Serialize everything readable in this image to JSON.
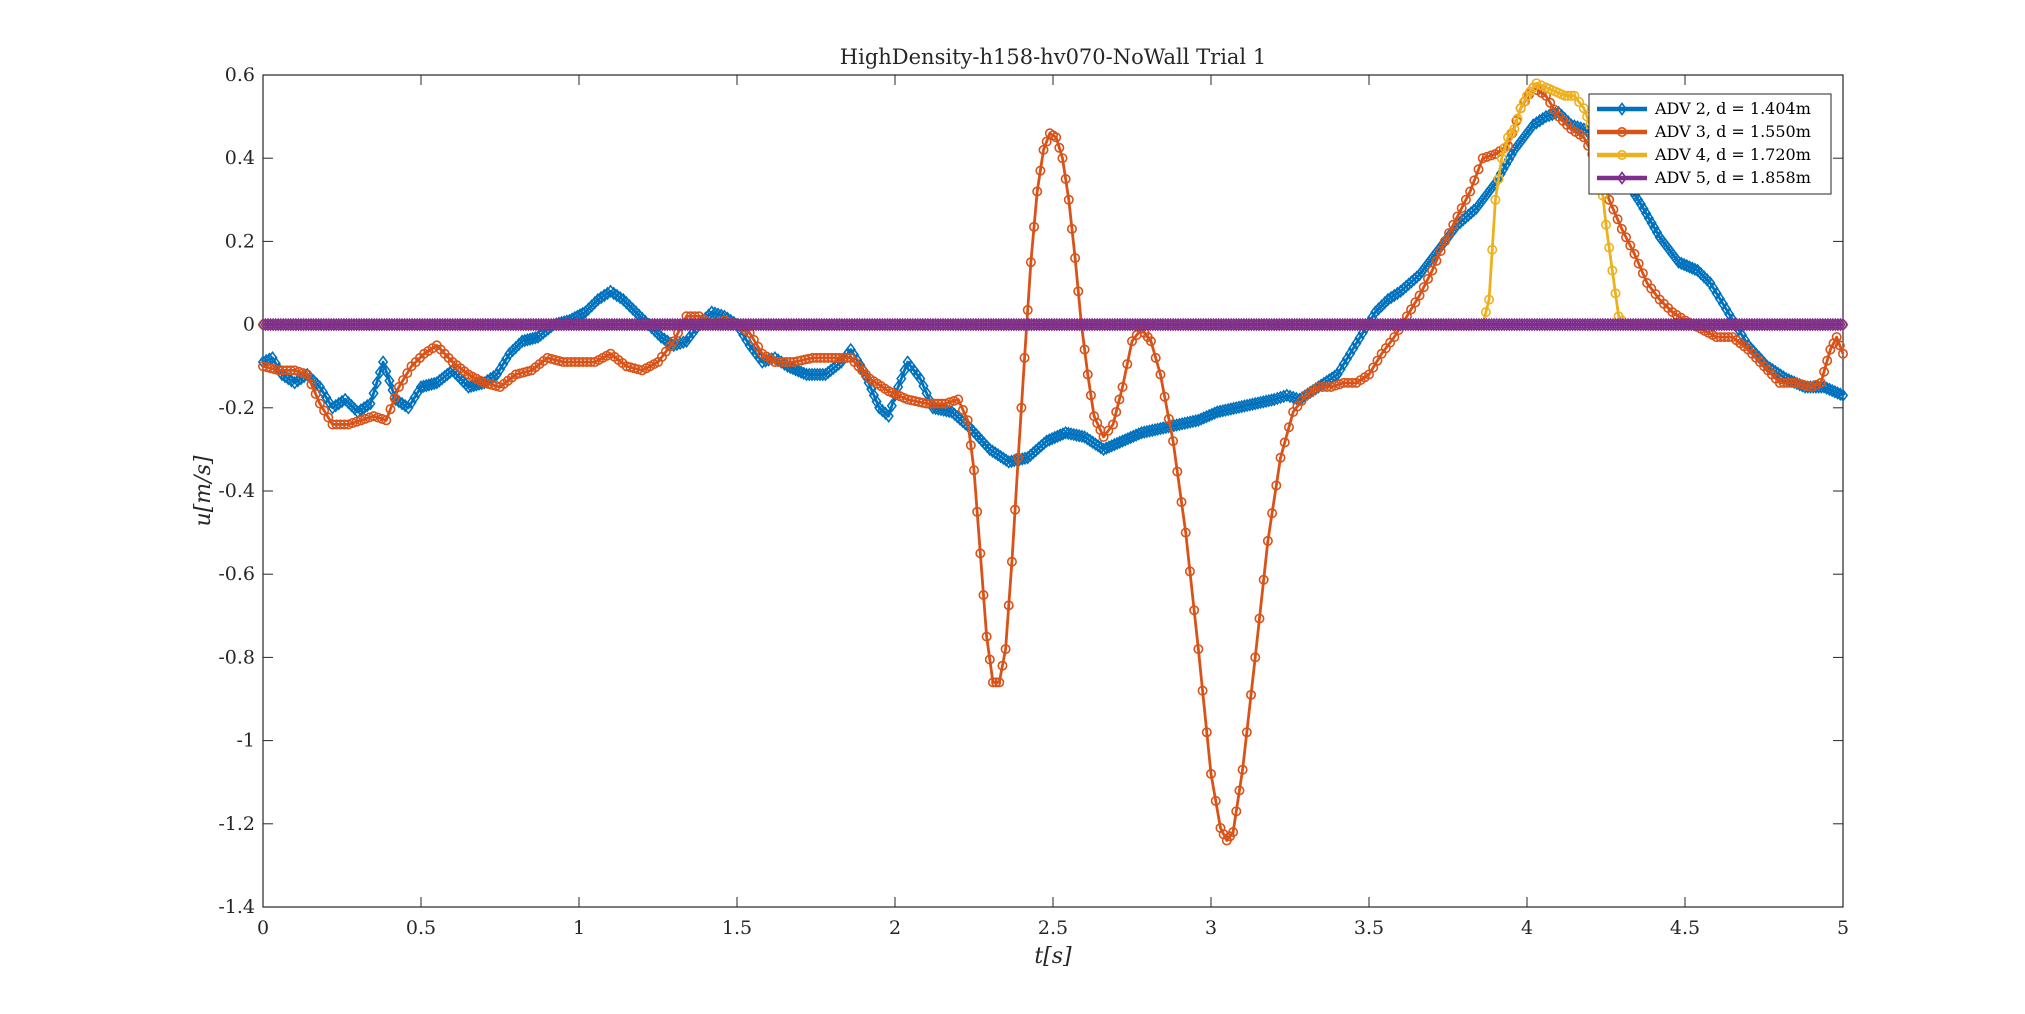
{
  "chart_data": {
    "type": "line",
    "title": "HighDensity-h158-hv070-NoWall Trial 1",
    "xlabel": "t[s]",
    "ylabel": "u[m/s]",
    "xlim": [
      0,
      5
    ],
    "ylim": [
      -1.4,
      0.6
    ],
    "xticks": [
      0,
      0.5,
      1,
      1.5,
      2,
      2.5,
      3,
      3.5,
      4,
      4.5,
      5
    ],
    "xtick_labels": [
      "0",
      "0.5",
      "1",
      "1.5",
      "2",
      "2.5",
      "3",
      "3.5",
      "4",
      "4.5",
      "5"
    ],
    "yticks": [
      -1.4,
      -1.2,
      -1,
      -0.8,
      -0.6,
      -0.4,
      -0.2,
      0,
      0.2,
      0.4,
      0.6
    ],
    "ytick_labels": [
      "-1.4",
      "-1.2",
      "-1",
      "-0.8",
      "-0.6",
      "-0.4",
      "-0.2",
      "0",
      "0.2",
      "0.4",
      "0.6"
    ],
    "grid": false,
    "legend_position": "top-right",
    "series": [
      {
        "name": "ADV 2, d = 1.404m",
        "color": "#0072BD",
        "marker": "diamond",
        "points": [
          [
            0,
            -0.09
          ],
          [
            0.03,
            -0.08
          ],
          [
            0.06,
            -0.12
          ],
          [
            0.1,
            -0.14
          ],
          [
            0.14,
            -0.12
          ],
          [
            0.18,
            -0.15
          ],
          [
            0.22,
            -0.2
          ],
          [
            0.26,
            -0.18
          ],
          [
            0.3,
            -0.21
          ],
          [
            0.34,
            -0.19
          ],
          [
            0.38,
            -0.09
          ],
          [
            0.42,
            -0.18
          ],
          [
            0.46,
            -0.2
          ],
          [
            0.5,
            -0.15
          ],
          [
            0.55,
            -0.14
          ],
          [
            0.6,
            -0.11
          ],
          [
            0.65,
            -0.15
          ],
          [
            0.7,
            -0.14
          ],
          [
            0.74,
            -0.12
          ],
          [
            0.78,
            -0.07
          ],
          [
            0.82,
            -0.04
          ],
          [
            0.87,
            -0.03
          ],
          [
            0.92,
            0.0
          ],
          [
            0.97,
            0.01
          ],
          [
            1.02,
            0.03
          ],
          [
            1.06,
            0.06
          ],
          [
            1.1,
            0.08
          ],
          [
            1.14,
            0.06
          ],
          [
            1.18,
            0.03
          ],
          [
            1.22,
            0.0
          ],
          [
            1.26,
            -0.03
          ],
          [
            1.3,
            -0.05
          ],
          [
            1.34,
            -0.04
          ],
          [
            1.38,
            0.0
          ],
          [
            1.42,
            0.03
          ],
          [
            1.46,
            0.02
          ],
          [
            1.5,
            0.0
          ],
          [
            1.54,
            -0.05
          ],
          [
            1.58,
            -0.09
          ],
          [
            1.62,
            -0.08
          ],
          [
            1.66,
            -0.1
          ],
          [
            1.72,
            -0.12
          ],
          [
            1.78,
            -0.12
          ],
          [
            1.83,
            -0.09
          ],
          [
            1.86,
            -0.06
          ],
          [
            1.9,
            -0.11
          ],
          [
            1.95,
            -0.2
          ],
          [
            1.98,
            -0.22
          ],
          [
            2.0,
            -0.17
          ],
          [
            2.04,
            -0.09
          ],
          [
            2.08,
            -0.13
          ],
          [
            2.12,
            -0.2
          ],
          [
            2.18,
            -0.21
          ],
          [
            2.24,
            -0.25
          ],
          [
            2.3,
            -0.3
          ],
          [
            2.36,
            -0.33
          ],
          [
            2.42,
            -0.32
          ],
          [
            2.48,
            -0.28
          ],
          [
            2.54,
            -0.26
          ],
          [
            2.6,
            -0.27
          ],
          [
            2.66,
            -0.3
          ],
          [
            2.72,
            -0.28
          ],
          [
            2.78,
            -0.26
          ],
          [
            2.84,
            -0.25
          ],
          [
            2.9,
            -0.24
          ],
          [
            2.96,
            -0.23
          ],
          [
            3.02,
            -0.21
          ],
          [
            3.08,
            -0.2
          ],
          [
            3.14,
            -0.19
          ],
          [
            3.2,
            -0.18
          ],
          [
            3.24,
            -0.17
          ],
          [
            3.28,
            -0.18
          ],
          [
            3.34,
            -0.15
          ],
          [
            3.4,
            -0.12
          ],
          [
            3.44,
            -0.07
          ],
          [
            3.48,
            -0.02
          ],
          [
            3.52,
            0.03
          ],
          [
            3.56,
            0.06
          ],
          [
            3.6,
            0.08
          ],
          [
            3.66,
            0.12
          ],
          [
            3.72,
            0.18
          ],
          [
            3.78,
            0.24
          ],
          [
            3.84,
            0.28
          ],
          [
            3.9,
            0.34
          ],
          [
            3.96,
            0.42
          ],
          [
            4.02,
            0.48
          ],
          [
            4.06,
            0.5
          ],
          [
            4.1,
            0.51
          ],
          [
            4.14,
            0.48
          ],
          [
            4.18,
            0.47
          ],
          [
            4.22,
            0.45
          ],
          [
            4.26,
            0.41
          ],
          [
            4.3,
            0.36
          ],
          [
            4.36,
            0.29
          ],
          [
            4.42,
            0.21
          ],
          [
            4.48,
            0.15
          ],
          [
            4.54,
            0.13
          ],
          [
            4.58,
            0.1
          ],
          [
            4.62,
            0.05
          ],
          [
            4.66,
            0.0
          ],
          [
            4.7,
            -0.05
          ],
          [
            4.76,
            -0.1
          ],
          [
            4.82,
            -0.13
          ],
          [
            4.88,
            -0.15
          ],
          [
            4.94,
            -0.15
          ],
          [
            5.0,
            -0.17
          ]
        ]
      },
      {
        "name": "ADV 3, d = 1.550m",
        "color": "#D95319",
        "marker": "circle",
        "points": [
          [
            0,
            -0.1
          ],
          [
            0.05,
            -0.11
          ],
          [
            0.1,
            -0.11
          ],
          [
            0.14,
            -0.12
          ],
          [
            0.18,
            -0.19
          ],
          [
            0.22,
            -0.24
          ],
          [
            0.27,
            -0.24
          ],
          [
            0.31,
            -0.23
          ],
          [
            0.35,
            -0.22
          ],
          [
            0.39,
            -0.23
          ],
          [
            0.43,
            -0.15
          ],
          [
            0.47,
            -0.1
          ],
          [
            0.51,
            -0.07
          ],
          [
            0.55,
            -0.05
          ],
          [
            0.6,
            -0.09
          ],
          [
            0.65,
            -0.12
          ],
          [
            0.7,
            -0.14
          ],
          [
            0.75,
            -0.15
          ],
          [
            0.8,
            -0.12
          ],
          [
            0.85,
            -0.11
          ],
          [
            0.9,
            -0.08
          ],
          [
            0.95,
            -0.09
          ],
          [
            1.0,
            -0.09
          ],
          [
            1.05,
            -0.09
          ],
          [
            1.1,
            -0.07
          ],
          [
            1.15,
            -0.1
          ],
          [
            1.2,
            -0.11
          ],
          [
            1.25,
            -0.09
          ],
          [
            1.3,
            -0.04
          ],
          [
            1.34,
            0.02
          ],
          [
            1.38,
            0.02
          ],
          [
            1.42,
            0.0
          ],
          [
            1.46,
            0.01
          ],
          [
            1.5,
            0.0
          ],
          [
            1.54,
            -0.02
          ],
          [
            1.58,
            -0.07
          ],
          [
            1.62,
            -0.09
          ],
          [
            1.68,
            -0.09
          ],
          [
            1.74,
            -0.08
          ],
          [
            1.8,
            -0.08
          ],
          [
            1.86,
            -0.08
          ],
          [
            1.92,
            -0.13
          ],
          [
            1.98,
            -0.16
          ],
          [
            2.04,
            -0.18
          ],
          [
            2.1,
            -0.19
          ],
          [
            2.16,
            -0.19
          ],
          [
            2.2,
            -0.18
          ],
          [
            2.23,
            -0.23
          ],
          [
            2.25,
            -0.35
          ],
          [
            2.27,
            -0.55
          ],
          [
            2.29,
            -0.75
          ],
          [
            2.31,
            -0.86
          ],
          [
            2.33,
            -0.86
          ],
          [
            2.35,
            -0.78
          ],
          [
            2.37,
            -0.57
          ],
          [
            2.39,
            -0.32
          ],
          [
            2.41,
            -0.08
          ],
          [
            2.43,
            0.15
          ],
          [
            2.45,
            0.32
          ],
          [
            2.47,
            0.42
          ],
          [
            2.49,
            0.46
          ],
          [
            2.51,
            0.45
          ],
          [
            2.53,
            0.4
          ],
          [
            2.55,
            0.3
          ],
          [
            2.57,
            0.16
          ],
          [
            2.59,
            0.0
          ],
          [
            2.61,
            -0.12
          ],
          [
            2.63,
            -0.22
          ],
          [
            2.66,
            -0.27
          ],
          [
            2.69,
            -0.24
          ],
          [
            2.72,
            -0.15
          ],
          [
            2.75,
            -0.04
          ],
          [
            2.78,
            -0.01
          ],
          [
            2.81,
            -0.04
          ],
          [
            2.84,
            -0.12
          ],
          [
            2.88,
            -0.28
          ],
          [
            2.92,
            -0.5
          ],
          [
            2.96,
            -0.78
          ],
          [
            3.0,
            -1.08
          ],
          [
            3.03,
            -1.21
          ],
          [
            3.05,
            -1.24
          ],
          [
            3.07,
            -1.22
          ],
          [
            3.1,
            -1.07
          ],
          [
            3.14,
            -0.8
          ],
          [
            3.18,
            -0.52
          ],
          [
            3.22,
            -0.32
          ],
          [
            3.26,
            -0.21
          ],
          [
            3.3,
            -0.17
          ],
          [
            3.34,
            -0.15
          ],
          [
            3.38,
            -0.15
          ],
          [
            3.42,
            -0.14
          ],
          [
            3.46,
            -0.14
          ],
          [
            3.5,
            -0.12
          ],
          [
            3.54,
            -0.07
          ],
          [
            3.58,
            -0.03
          ],
          [
            3.62,
            0.02
          ],
          [
            3.66,
            0.07
          ],
          [
            3.7,
            0.13
          ],
          [
            3.74,
            0.2
          ],
          [
            3.78,
            0.26
          ],
          [
            3.82,
            0.32
          ],
          [
            3.86,
            0.4
          ],
          [
            3.9,
            0.41
          ],
          [
            3.94,
            0.43
          ],
          [
            3.98,
            0.52
          ],
          [
            4.02,
            0.57
          ],
          [
            4.06,
            0.55
          ],
          [
            4.1,
            0.5
          ],
          [
            4.14,
            0.47
          ],
          [
            4.18,
            0.45
          ],
          [
            4.22,
            0.39
          ],
          [
            4.26,
            0.3
          ],
          [
            4.3,
            0.23
          ],
          [
            4.34,
            0.17
          ],
          [
            4.38,
            0.1
          ],
          [
            4.42,
            0.06
          ],
          [
            4.46,
            0.03
          ],
          [
            4.5,
            0.01
          ],
          [
            4.55,
            -0.01
          ],
          [
            4.6,
            -0.03
          ],
          [
            4.65,
            -0.03
          ],
          [
            4.7,
            -0.06
          ],
          [
            4.75,
            -0.1
          ],
          [
            4.8,
            -0.14
          ],
          [
            4.85,
            -0.14
          ],
          [
            4.9,
            -0.15
          ],
          [
            4.93,
            -0.14
          ],
          [
            4.96,
            -0.06
          ],
          [
            4.98,
            -0.03
          ],
          [
            5.0,
            -0.07
          ]
        ]
      },
      {
        "name": "ADV 4, d = 1.720m",
        "color": "#EDB120",
        "marker": "circle",
        "points": [
          [
            0,
            0.0
          ],
          [
            0.25,
            0.0
          ],
          [
            0.5,
            0.0
          ],
          [
            0.75,
            0.0
          ],
          [
            1.0,
            0.0
          ],
          [
            1.25,
            0.0
          ],
          [
            1.5,
            0.0
          ],
          [
            1.75,
            0.0
          ],
          [
            2.0,
            0.0
          ],
          [
            2.25,
            0.0
          ],
          [
            2.5,
            0.0
          ],
          [
            2.75,
            0.0
          ],
          [
            3.0,
            0.0
          ],
          [
            3.25,
            0.0
          ],
          [
            3.5,
            0.0
          ],
          [
            3.75,
            0.0
          ],
          [
            3.86,
            0.0
          ],
          [
            3.88,
            0.06
          ],
          [
            3.9,
            0.3
          ],
          [
            3.92,
            0.4
          ],
          [
            3.94,
            0.45
          ],
          [
            3.96,
            0.47
          ],
          [
            3.98,
            0.52
          ],
          [
            4.0,
            0.55
          ],
          [
            4.03,
            0.58
          ],
          [
            4.06,
            0.57
          ],
          [
            4.09,
            0.56
          ],
          [
            4.12,
            0.55
          ],
          [
            4.15,
            0.55
          ],
          [
            4.18,
            0.52
          ],
          [
            4.21,
            0.46
          ],
          [
            4.23,
            0.38
          ],
          [
            4.25,
            0.24
          ],
          [
            4.27,
            0.13
          ],
          [
            4.29,
            0.02
          ],
          [
            4.31,
            0.0
          ],
          [
            4.5,
            0.0
          ],
          [
            4.75,
            0.0
          ],
          [
            5.0,
            0.0
          ]
        ]
      },
      {
        "name": "ADV 5, d = 1.858m",
        "color": "#7E2F8E",
        "marker": "diamond",
        "points": [
          [
            0,
            0.0
          ],
          [
            1.0,
            0.0
          ],
          [
            2.0,
            0.0
          ],
          [
            3.0,
            0.0
          ],
          [
            4.0,
            0.0
          ],
          [
            5.0,
            0.0
          ]
        ]
      }
    ]
  }
}
